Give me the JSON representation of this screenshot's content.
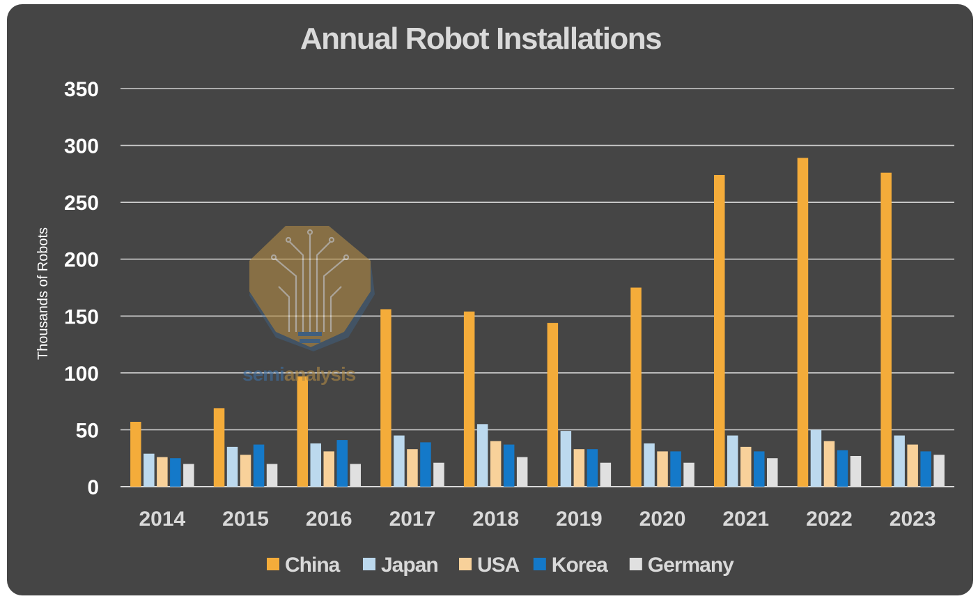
{
  "chart_data": {
    "type": "bar",
    "title": "Annual Robot Installations",
    "xlabel": "",
    "ylabel": "Thousands of Robots",
    "ylim": [
      0,
      350
    ],
    "yticks": [
      0,
      50,
      100,
      150,
      200,
      250,
      300,
      350
    ],
    "grid": true,
    "legend_position": "bottom",
    "categories": [
      "2014",
      "2015",
      "2016",
      "2017",
      "2018",
      "2019",
      "2020",
      "2021",
      "2022",
      "2023"
    ],
    "series": [
      {
        "name": "China",
        "color": "#f4ac3a",
        "values": [
          57,
          69,
          97,
          156,
          154,
          144,
          175,
          274,
          289,
          276
        ]
      },
      {
        "name": "Japan",
        "color": "#bcd9ee",
        "values": [
          29,
          35,
          38,
          45,
          55,
          49,
          38,
          45,
          50,
          45
        ]
      },
      {
        "name": "USA",
        "color": "#f8d19a",
        "values": [
          26,
          28,
          31,
          33,
          40,
          33,
          31,
          35,
          40,
          37
        ]
      },
      {
        "name": "Korea",
        "color": "#1479c9",
        "values": [
          25,
          37,
          41,
          39,
          37,
          33,
          31,
          31,
          32,
          31
        ]
      },
      {
        "name": "Germany",
        "color": "#e0e0e0",
        "values": [
          20,
          20,
          20,
          21,
          26,
          21,
          21,
          25,
          27,
          28
        ]
      }
    ]
  },
  "watermark": {
    "text_part1": "semi",
    "text_part2": "analysis",
    "icon": "circuit-tree-lightbulb-icon",
    "colors": {
      "badge": "#b08a45",
      "accent": "#3d6fa3"
    }
  }
}
